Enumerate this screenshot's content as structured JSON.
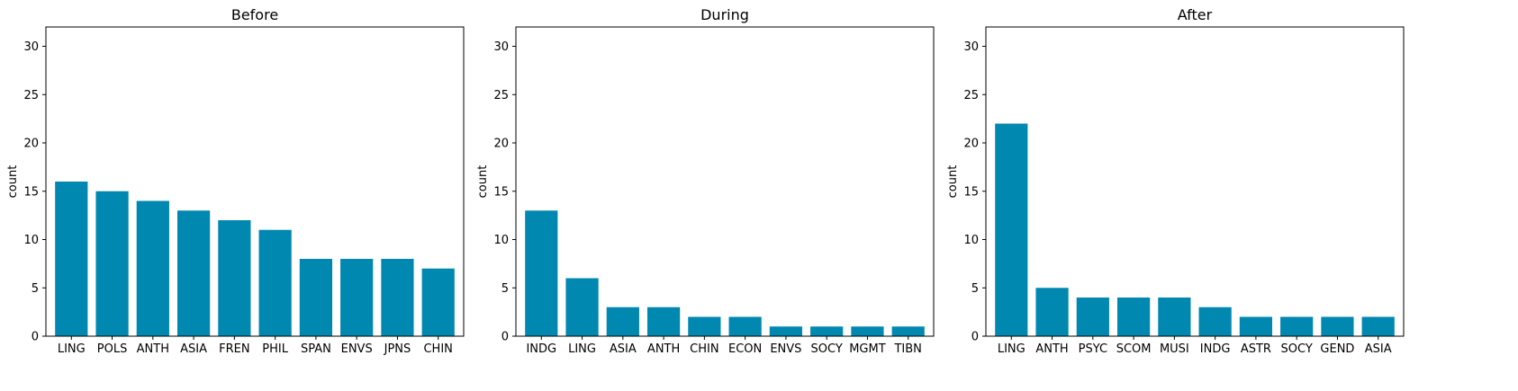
{
  "chart_data": [
    {
      "type": "bar",
      "title": "Before",
      "ylabel": "count",
      "ylim": [
        0,
        32
      ],
      "yticks": [
        0,
        5,
        10,
        15,
        20,
        25,
        30
      ],
      "categories": [
        "LING",
        "POLS",
        "ANTH",
        "ASIA",
        "FREN",
        "PHIL",
        "SPAN",
        "ENVS",
        "JPNS",
        "CHIN"
      ],
      "values": [
        16,
        15,
        14,
        13,
        12,
        11,
        8,
        8,
        8,
        7
      ],
      "color": "#0088b0",
      "grid": false
    },
    {
      "type": "bar",
      "title": "During",
      "ylabel": "count",
      "ylim": [
        0,
        32
      ],
      "yticks": [
        0,
        5,
        10,
        15,
        20,
        25,
        30
      ],
      "categories": [
        "INDG",
        "LING",
        "ASIA",
        "ANTH",
        "CHIN",
        "ECON",
        "ENVS",
        "SOCY",
        "MGMT",
        "TIBN"
      ],
      "values": [
        13,
        6,
        3,
        3,
        2,
        2,
        1,
        1,
        1,
        1
      ],
      "color": "#0088b0",
      "grid": false
    },
    {
      "type": "bar",
      "title": "After",
      "ylabel": "count",
      "ylim": [
        0,
        32
      ],
      "yticks": [
        0,
        5,
        10,
        15,
        20,
        25,
        30
      ],
      "categories": [
        "LING",
        "ANTH",
        "PSYC",
        "SCOM",
        "MUSI",
        "INDG",
        "ASTR",
        "SOCY",
        "GEND",
        "ASIA"
      ],
      "values": [
        22,
        5,
        4,
        4,
        4,
        3,
        2,
        2,
        2,
        2
      ],
      "color": "#0088b0",
      "grid": false
    }
  ]
}
